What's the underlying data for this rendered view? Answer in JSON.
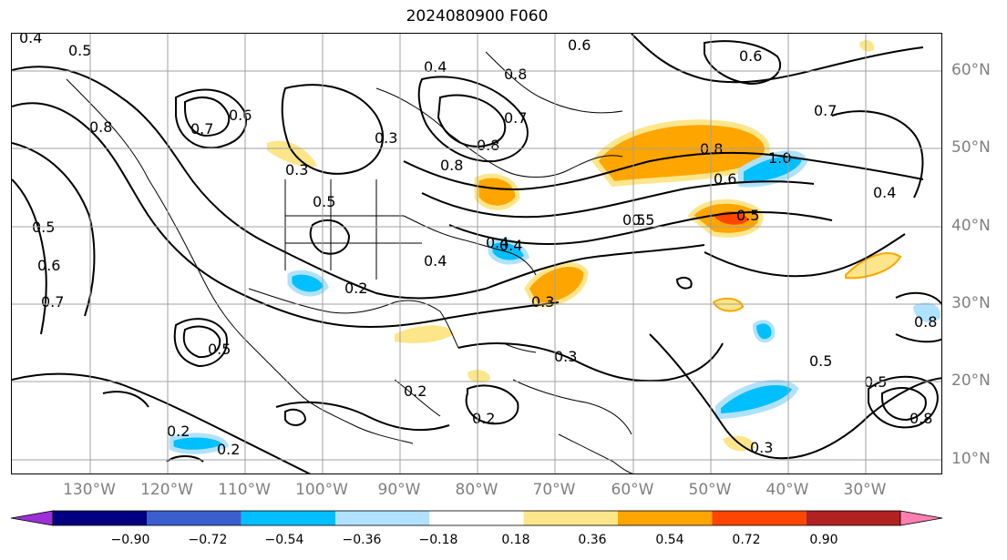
{
  "title": "2024080900 F060",
  "lat_labels": [
    "60°N",
    "50°N",
    "40°N",
    "30°N",
    "20°N",
    "10°N"
  ],
  "lon_labels": [
    "130°W",
    "120°W",
    "110°W",
    "100°W",
    "90°W",
    "80°W",
    "70°W",
    "60°W",
    "50°W",
    "40°W",
    "30°W"
  ],
  "colorbar": {
    "ticks": [
      "−0.90",
      "−0.72",
      "−0.54",
      "−0.36",
      "−0.18",
      "0.18",
      "0.36",
      "0.54",
      "0.72",
      "0.90"
    ],
    "colors": [
      "#9b30d9",
      "#000080",
      "#3a5fcd",
      "#00bfff",
      "#b0e2ff",
      "#ffffff",
      "#fde68a",
      "#ffa500",
      "#ff4500",
      "#b22222",
      "#ff7fb0"
    ]
  },
  "contour_labels": [
    "0.4",
    "0.5",
    "0.7",
    "0.6",
    "0.8",
    "0.4",
    "0.6",
    "0.8",
    "0.3",
    "0.4",
    "0.7",
    "0.8",
    "0.6",
    "0.7",
    "0.8",
    "0.6",
    "0.5",
    "0.6",
    "0.5",
    "0.7",
    "0.4",
    "0.5",
    "0.2",
    "0.4",
    "0.3",
    "0.2",
    "0.5",
    "0.8",
    "0.5",
    "0.2",
    "0.2",
    "0.3",
    "0.5",
    "0.8",
    "0.8",
    "0.3",
    "0.2",
    "0.5",
    "1.0",
    "0.4",
    "0.5",
    "0.3"
  ]
}
